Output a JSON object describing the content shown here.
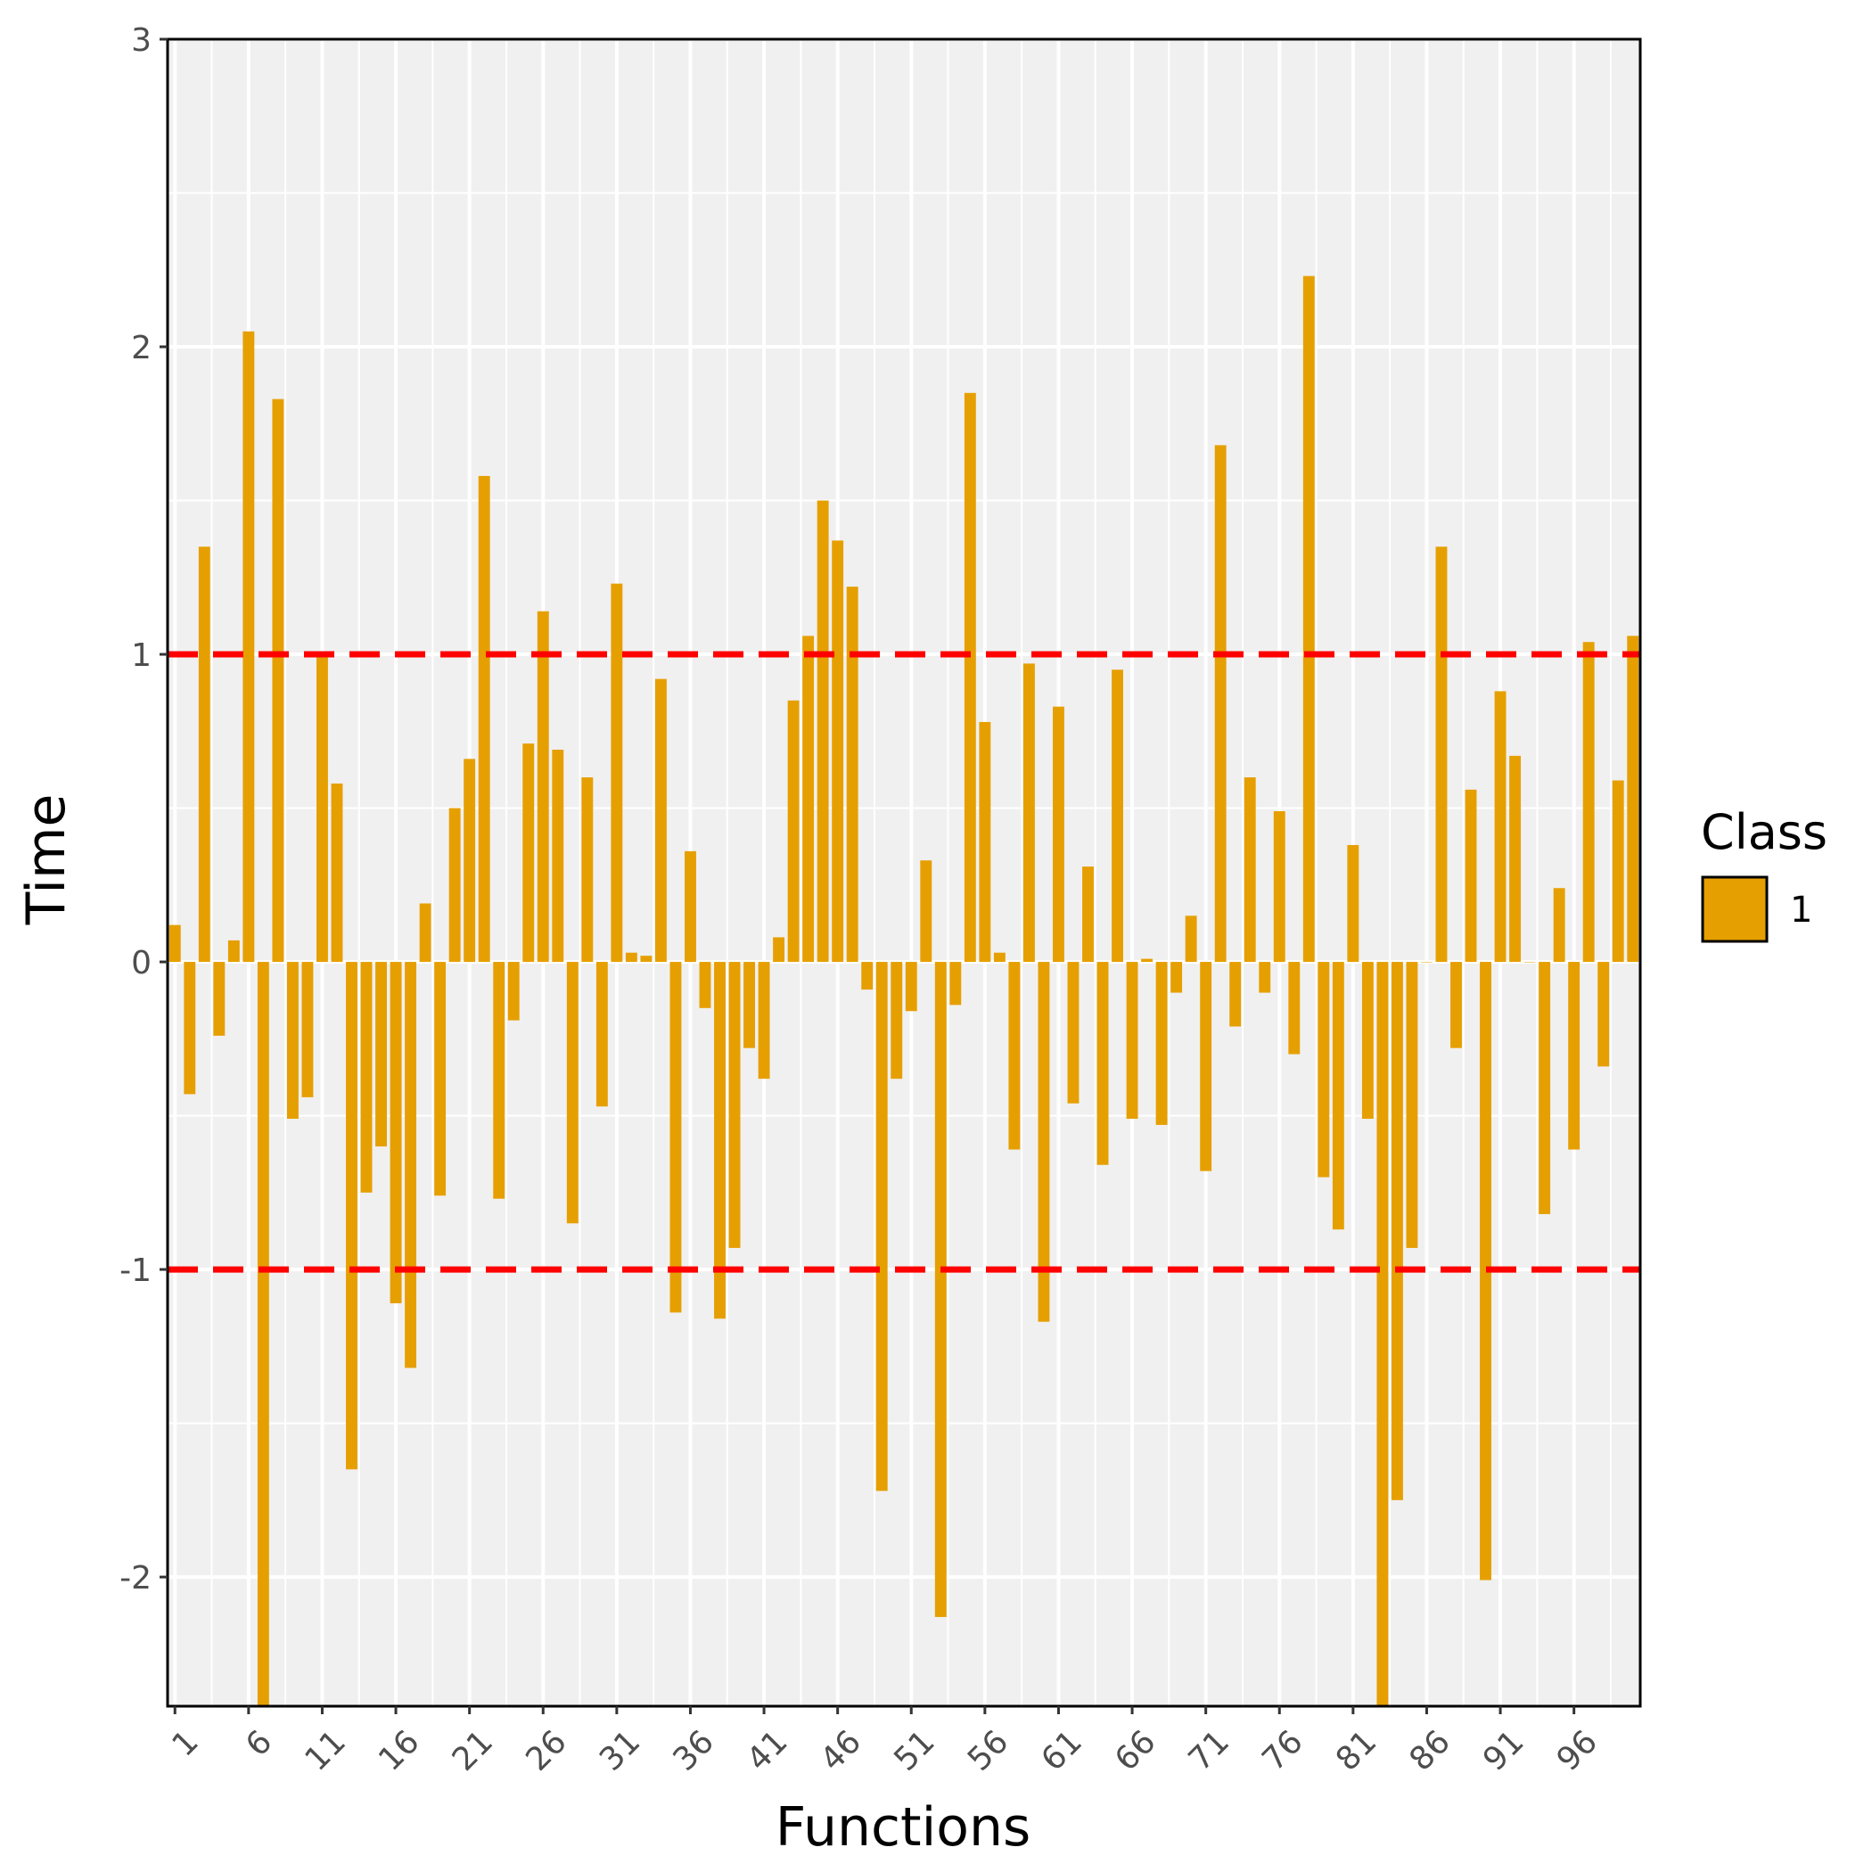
{
  "chart_data": {
    "type": "bar",
    "xlabel": "Functions",
    "ylabel": "Time",
    "ylim": [
      -2.42,
      3.0
    ],
    "yticks": [
      -2,
      -1,
      0,
      1,
      2,
      3
    ],
    "xtick_labels": [
      "1",
      "6",
      "11",
      "16",
      "21",
      "26",
      "31",
      "36",
      "41",
      "46",
      "51",
      "56",
      "61",
      "66",
      "71",
      "76",
      "81",
      "86",
      "91",
      "96"
    ],
    "reference_lines": [
      1,
      -1
    ],
    "reference_line_color": "#ff0000",
    "bar_color": "#E69F00",
    "panel_background": "#f0f0f0",
    "grid": true,
    "legend": {
      "title": "Class",
      "labels": [
        "1"
      ],
      "position": "right"
    },
    "series": [
      {
        "name": "1",
        "x": [
          1,
          2,
          3,
          4,
          5,
          6,
          7,
          8,
          9,
          10,
          11,
          12,
          13,
          14,
          15,
          16,
          17,
          18,
          19,
          20,
          21,
          22,
          23,
          24,
          25,
          26,
          27,
          28,
          29,
          30,
          31,
          32,
          33,
          34,
          35,
          36,
          37,
          38,
          39,
          40,
          41,
          42,
          43,
          44,
          45,
          46,
          47,
          48,
          49,
          50,
          51,
          52,
          53,
          54,
          55,
          56,
          57,
          58,
          59,
          60,
          61,
          62,
          63,
          64,
          65,
          66,
          67,
          68,
          69,
          70,
          71,
          72,
          73,
          74,
          75,
          76,
          77,
          78,
          79,
          80,
          81,
          82,
          83,
          84,
          85,
          86,
          87,
          88,
          89,
          90,
          91,
          92,
          93,
          94,
          95,
          96,
          97,
          98,
          99,
          100
        ],
        "values": [
          0.12,
          -0.43,
          1.35,
          -0.24,
          0.07,
          2.05,
          -2.6,
          1.83,
          -0.51,
          -0.44,
          1.0,
          0.58,
          -1.65,
          -0.75,
          -0.6,
          -1.11,
          -1.32,
          0.19,
          -0.76,
          0.5,
          0.66,
          1.58,
          -0.77,
          -0.19,
          0.71,
          1.14,
          0.69,
          -0.85,
          0.6,
          -0.47,
          1.23,
          0.03,
          0.02,
          0.92,
          -1.14,
          0.36,
          -0.15,
          -1.16,
          -0.93,
          -0.28,
          -0.38,
          0.08,
          0.85,
          1.06,
          1.5,
          1.37,
          1.22,
          -0.09,
          -1.72,
          -0.38,
          -0.16,
          0.33,
          -2.13,
          -0.14,
          1.85,
          0.78,
          0.03,
          -0.61,
          0.97,
          -1.17,
          0.83,
          -0.46,
          0.31,
          -0.66,
          0.95,
          -0.51,
          0.01,
          -0.53,
          -0.1,
          0.15,
          -0.68,
          1.68,
          -0.21,
          0.6,
          -0.1,
          0.49,
          -0.3,
          2.23,
          -0.7,
          -0.87,
          0.38,
          -0.51,
          -2.6,
          -1.75,
          -0.93,
          0.0,
          1.35,
          -0.28,
          0.56,
          -2.01,
          0.88,
          0.67,
          0.0,
          -0.82,
          0.24,
          -0.61,
          1.04,
          -0.34,
          0.59,
          1.06
        ]
      }
    ]
  }
}
